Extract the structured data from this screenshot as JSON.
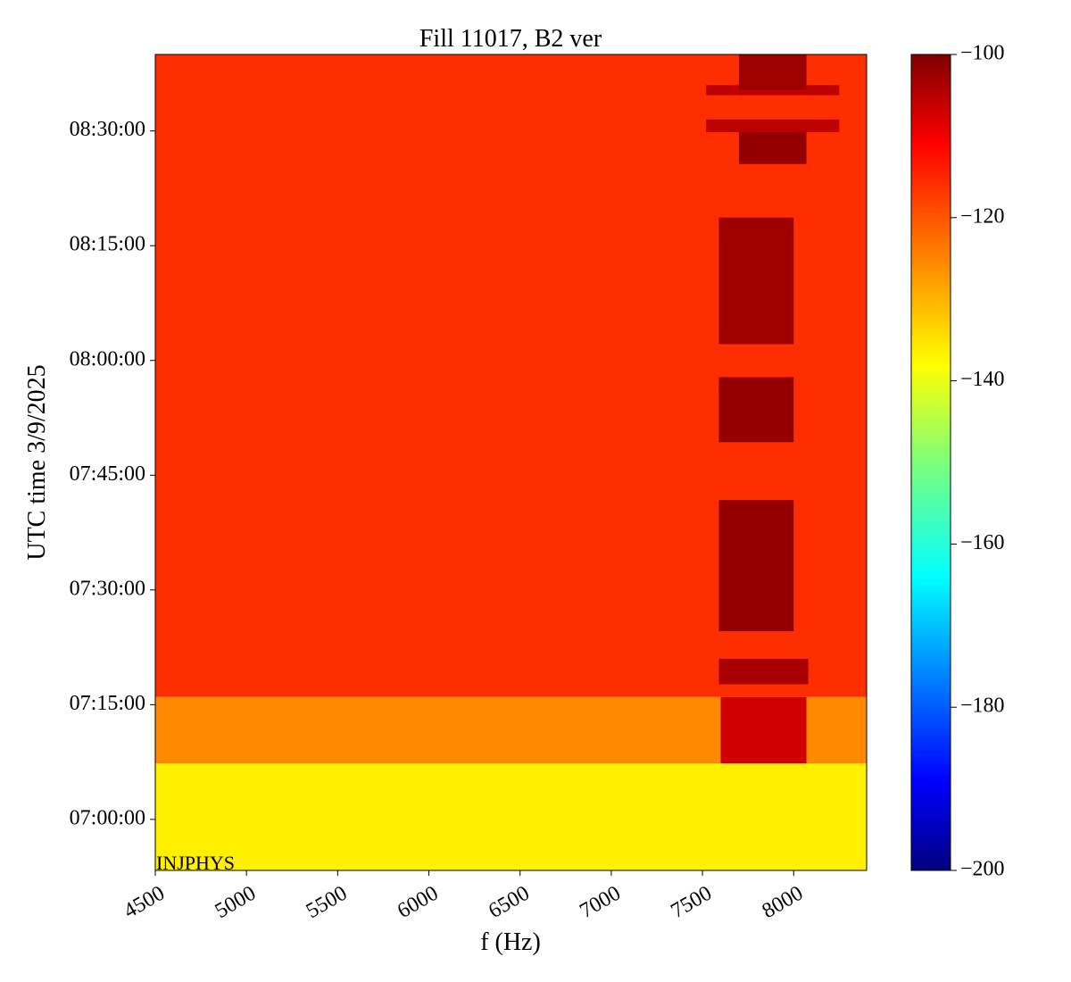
{
  "chart_data": {
    "type": "spectrogram",
    "title": "Fill 11017, B2 ver",
    "xlabel": "f (Hz)",
    "ylabel": "UTC time 3/9/2025",
    "annotation": "INJPHYS",
    "colormap": "jet",
    "xlim": [
      4500,
      8400
    ],
    "xticks": [
      4500,
      5000,
      5500,
      6000,
      6500,
      7000,
      7500,
      8000
    ],
    "ylim": [
      24800,
      31200
    ],
    "yticks": [
      {
        "value": 25200,
        "label": "07:00:00"
      },
      {
        "value": 26100,
        "label": "07:15:00"
      },
      {
        "value": 27000,
        "label": "07:30:00"
      },
      {
        "value": 27900,
        "label": "07:45:00"
      },
      {
        "value": 28800,
        "label": "08:00:00"
      },
      {
        "value": 29700,
        "label": "08:15:00"
      },
      {
        "value": 30600,
        "label": "08:30:00"
      }
    ],
    "clim": [
      -200,
      -100
    ],
    "cticks": [
      {
        "value": -200,
        "label": "−200"
      },
      {
        "value": -180,
        "label": "−180"
      },
      {
        "value": -160,
        "label": "−160"
      },
      {
        "value": -140,
        "label": "−140"
      },
      {
        "value": -120,
        "label": "−120"
      },
      {
        "value": -100,
        "label": "−100"
      }
    ],
    "cells": [
      {
        "x0": 4500,
        "x1": 8400,
        "y0": 24800,
        "y1": 25640,
        "value": -136
      },
      {
        "x0": 4500,
        "x1": 8400,
        "y0": 25640,
        "y1": 26160,
        "value": -126
      },
      {
        "x0": 4500,
        "x1": 8400,
        "y0": 26160,
        "y1": 31200,
        "value": -117
      },
      {
        "x0": 7600,
        "x1": 8070,
        "y0": 25640,
        "y1": 26160,
        "value": -108
      },
      {
        "x0": 7590,
        "x1": 8080,
        "y0": 26260,
        "y1": 26460,
        "value": -104
      },
      {
        "x0": 7590,
        "x1": 8000,
        "y0": 26676,
        "y1": 27704,
        "value": -102
      },
      {
        "x0": 7590,
        "x1": 8000,
        "y0": 28159,
        "y1": 28669,
        "value": -102
      },
      {
        "x0": 7590,
        "x1": 8000,
        "y0": 28928,
        "y1": 29921,
        "value": -103
      },
      {
        "x0": 7700,
        "x1": 8070,
        "y0": 30341,
        "y1": 30642,
        "value": -102
      },
      {
        "x0": 7520,
        "x1": 8250,
        "y0": 30590,
        "y1": 30690,
        "value": -106
      },
      {
        "x0": 7520,
        "x1": 8250,
        "y0": 30880,
        "y1": 30960,
        "value": -106
      },
      {
        "x0": 7700,
        "x1": 8070,
        "y0": 30922,
        "y1": 31200,
        "value": -103
      }
    ]
  }
}
